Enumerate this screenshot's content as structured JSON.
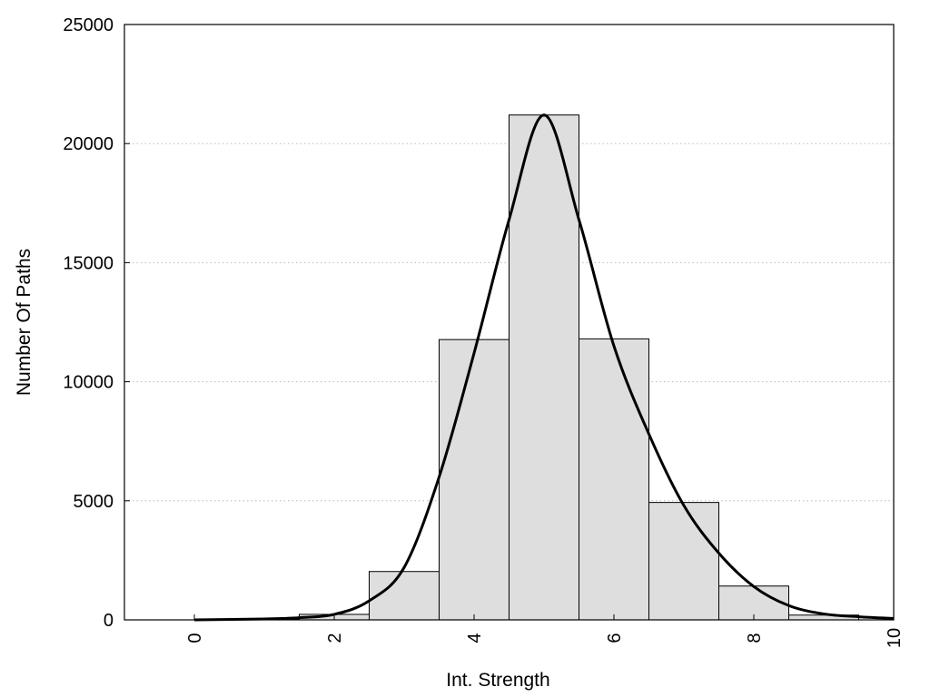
{
  "chart_data": {
    "type": "bar",
    "subtype": "histogram-with-density-curve",
    "title": "",
    "xlabel": "Int. Strength",
    "ylabel": "Number Of Paths",
    "xlim": [
      -1,
      10
    ],
    "ylim": [
      0,
      25000
    ],
    "x_ticks": [
      "0",
      "2",
      "4",
      "6",
      "8",
      "10"
    ],
    "y_ticks": [
      "0",
      "5000",
      "10000",
      "15000",
      "20000",
      "25000"
    ],
    "grid": "horizontal dotted",
    "legend": "none",
    "bins": [
      {
        "x": 0,
        "value": 0
      },
      {
        "x": 1,
        "value": 40
      },
      {
        "x": 2,
        "value": 230
      },
      {
        "x": 3,
        "value": 2030
      },
      {
        "x": 4,
        "value": 11770
      },
      {
        "x": 5,
        "value": 21200
      },
      {
        "x": 6,
        "value": 11800
      },
      {
        "x": 7,
        "value": 4930
      },
      {
        "x": 8,
        "value": 1420
      },
      {
        "x": 9,
        "value": 200
      },
      {
        "x": 10,
        "value": 0
      }
    ],
    "density_curve": [
      {
        "x": 0,
        "y": 0
      },
      {
        "x": 1,
        "y": 40
      },
      {
        "x": 1.5,
        "y": 90
      },
      {
        "x": 2,
        "y": 230
      },
      {
        "x": 2.5,
        "y": 800
      },
      {
        "x": 3,
        "y": 2200
      },
      {
        "x": 3.5,
        "y": 6000
      },
      {
        "x": 4,
        "y": 11200
      },
      {
        "x": 4.5,
        "y": 16800
      },
      {
        "x": 5,
        "y": 21200
      },
      {
        "x": 5.5,
        "y": 16800
      },
      {
        "x": 6,
        "y": 11500
      },
      {
        "x": 6.5,
        "y": 7800
      },
      {
        "x": 7,
        "y": 4800
      },
      {
        "x": 7.5,
        "y": 2800
      },
      {
        "x": 8,
        "y": 1400
      },
      {
        "x": 8.5,
        "y": 600
      },
      {
        "x": 9,
        "y": 250
      },
      {
        "x": 9.5,
        "y": 130
      },
      {
        "x": 10,
        "y": 60
      }
    ],
    "colors": {
      "bar_fill": "#dedede",
      "bar_stroke": "#000000",
      "curve": "#000000",
      "grid": "#bbbbbb"
    }
  }
}
